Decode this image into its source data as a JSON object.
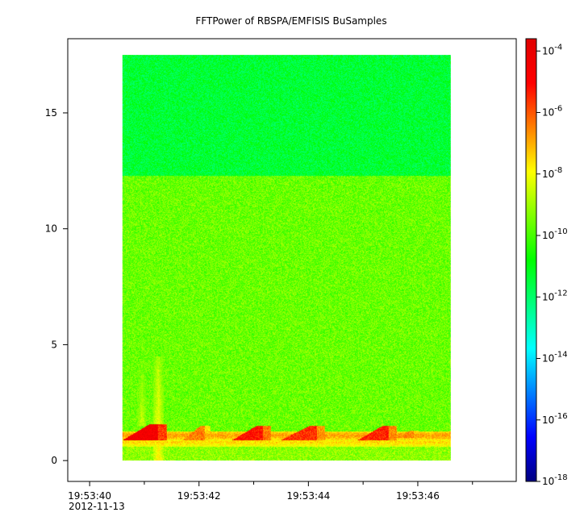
{
  "chart_data": {
    "type": "heatmap",
    "title": "FFTPower of RBSPA/EMFISIS  BuSamples",
    "xlabel": "",
    "ylabel": "",
    "x_date_label": "2012-11-13",
    "xlim": [
      "19:53:39.6",
      "19:53:47.8"
    ],
    "data_x_range": [
      "19:53:40.6",
      "19:53:46.6"
    ],
    "ylim": [
      -0.9,
      18.2
    ],
    "data_y_range": [
      0,
      17.5
    ],
    "x_ticks": [
      {
        "seconds": 40,
        "label": "19:53:40"
      },
      {
        "seconds": 42,
        "label": "19:53:42"
      },
      {
        "seconds": 44,
        "label": "19:53:44"
      },
      {
        "seconds": 46,
        "label": "19:53:46"
      }
    ],
    "x_minor_ticks_seconds": [
      41,
      43,
      45,
      47
    ],
    "y_ticks": [
      0,
      5,
      10,
      15
    ],
    "colorbar": {
      "scale": "log",
      "range_exponent": [
        -18,
        -3.6
      ],
      "tick_base": "10",
      "tick_exponents": [
        "-18",
        "-16",
        "-14",
        "-12",
        "-10",
        "-8",
        "-6",
        "-4"
      ],
      "colormap": [
        "#00007f",
        "#0000ff",
        "#007fff",
        "#00ffff",
        "#00ff7f",
        "#00ff00",
        "#7fff00",
        "#ffff00",
        "#ff7f00",
        "#ff0000",
        "#e00000"
      ]
    },
    "bands": [
      {
        "y_range": [
          12.3,
          17.5
        ],
        "level_exponent": -11.4,
        "description_color": "#00e86a"
      },
      {
        "y_range": [
          1.2,
          12.3
        ],
        "level_exponent": -9.6,
        "description_color": "#5ee800"
      },
      {
        "y_range": [
          0.0,
          1.0
        ],
        "level_exponent": -9.2,
        "description_color": "#8cf000"
      }
    ],
    "features": [
      {
        "kind": "line",
        "y": 1.1,
        "x_range": [
          40.6,
          46.6
        ],
        "level_exponent": -6.8
      },
      {
        "kind": "line",
        "y": 0.8,
        "x_range": [
          40.6,
          46.6
        ],
        "level_exponent": -7.5
      },
      {
        "kind": "burst",
        "x": 41.25,
        "y_range": [
          0,
          4.5
        ],
        "level_exponent": -7.6
      },
      {
        "kind": "burst",
        "x": 40.95,
        "y_range": [
          1.5,
          4.2
        ],
        "level_exponent": -8.4
      },
      {
        "kind": "chorus",
        "x_range": [
          40.6,
          41.4
        ],
        "y_range": [
          0.9,
          1.6
        ],
        "level_exponent": -4.5
      },
      {
        "kind": "chorus",
        "x_range": [
          41.7,
          42.2
        ],
        "y_range": [
          0.9,
          1.5
        ],
        "level_exponent": -6.5
      },
      {
        "kind": "chorus",
        "x_range": [
          42.6,
          43.3
        ],
        "y_range": [
          0.9,
          1.5
        ],
        "level_exponent": -5.2
      },
      {
        "kind": "chorus",
        "x_range": [
          43.5,
          44.3
        ],
        "y_range": [
          0.9,
          1.5
        ],
        "level_exponent": -5.6
      },
      {
        "kind": "chorus",
        "x_range": [
          44.9,
          45.6
        ],
        "y_range": [
          0.9,
          1.5
        ],
        "level_exponent": -5.4
      },
      {
        "kind": "chorus",
        "x_range": [
          45.6,
          46.0
        ],
        "y_range": [
          1.0,
          1.3
        ],
        "level_exponent": -6.6
      }
    ]
  }
}
